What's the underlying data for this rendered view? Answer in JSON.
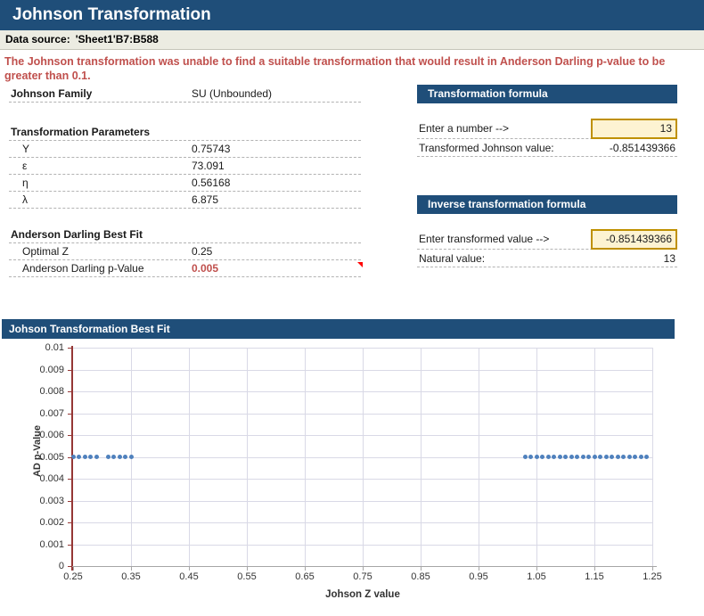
{
  "title": "Johnson Transformation",
  "datasource": {
    "label": "Data source:",
    "value": "'Sheet1'B7:B588"
  },
  "warning": "The Johnson transformation was unable to find a suitable transformation that would result in Anderson Darling p-value to be greater than 0.1.",
  "summary": {
    "family_label": "Johnson Family",
    "family_value": "SU (Unbounded)",
    "params_header": "Transformation Parameters",
    "params": [
      {
        "symbol": "Υ",
        "value": "0.75743"
      },
      {
        "symbol": "ε",
        "value": "73.091"
      },
      {
        "symbol": "η",
        "value": "0.56168"
      },
      {
        "symbol": "λ",
        "value": "6.875"
      }
    ],
    "ad_header": "Anderson Darling Best Fit",
    "optimal_z_label": "Optimal Z",
    "optimal_z_value": "0.25",
    "pvalue_label": "Anderson Darling p-Value",
    "pvalue_value": "0.005"
  },
  "transform_box": {
    "header": "Transformation formula",
    "input_label": "Enter a number -->",
    "input_value": "13",
    "output_label": "Transformed Johnson value:",
    "output_value": "-0.851439366"
  },
  "inverse_box": {
    "header": "Inverse transformation formula",
    "input_label": "Enter transformed value -->",
    "input_value": "-0.851439366",
    "output_label": "Natural value:",
    "output_value": "13"
  },
  "chart_header": "Johson Transformation Best Fit",
  "chart_data": {
    "type": "scatter",
    "title": "Johson Transformation Best Fit",
    "xlabel": "Johson Z value",
    "ylabel": "AD p-Value",
    "xlim": [
      0.25,
      1.25
    ],
    "ylim": [
      0,
      0.01
    ],
    "grid": true,
    "xticks": [
      "0.25",
      "0.35",
      "0.45",
      "0.55",
      "0.65",
      "0.75",
      "0.85",
      "0.95",
      "1.05",
      "1.15",
      "1.25"
    ],
    "yticks": [
      "0",
      "0.001",
      "0.002",
      "0.003",
      "0.004",
      "0.005",
      "0.006",
      "0.007",
      "0.008",
      "0.009",
      "0.01"
    ],
    "series": [
      {
        "name": "AD p-Value",
        "color": "#4F81BD",
        "points": [
          [
            0.25,
            0.005
          ],
          [
            0.26,
            0.005
          ],
          [
            0.27,
            0.005
          ],
          [
            0.28,
            0.005
          ],
          [
            0.29,
            0.005
          ],
          [
            0.31,
            0.005
          ],
          [
            0.32,
            0.005
          ],
          [
            0.33,
            0.005
          ],
          [
            0.34,
            0.005
          ],
          [
            0.35,
            0.005
          ],
          [
            1.03,
            0.005
          ],
          [
            1.04,
            0.005
          ],
          [
            1.05,
            0.005
          ],
          [
            1.06,
            0.005
          ],
          [
            1.07,
            0.005
          ],
          [
            1.08,
            0.005
          ],
          [
            1.09,
            0.005
          ],
          [
            1.1,
            0.005
          ],
          [
            1.11,
            0.005
          ],
          [
            1.12,
            0.005
          ],
          [
            1.13,
            0.005
          ],
          [
            1.14,
            0.005
          ],
          [
            1.15,
            0.005
          ],
          [
            1.16,
            0.005
          ],
          [
            1.17,
            0.005
          ],
          [
            1.18,
            0.005
          ],
          [
            1.19,
            0.005
          ],
          [
            1.2,
            0.005
          ],
          [
            1.21,
            0.005
          ],
          [
            1.22,
            0.005
          ],
          [
            1.23,
            0.005
          ],
          [
            1.24,
            0.005
          ]
        ]
      }
    ]
  },
  "colors": {
    "header_navy": "#1F4E79",
    "warning_red": "#C0504D",
    "input_fill": "#FDF3D2",
    "input_border": "#BF9000",
    "dot_blue": "#4F81BD",
    "axis_red": "#953735",
    "gridline": "#D9D9E6"
  }
}
